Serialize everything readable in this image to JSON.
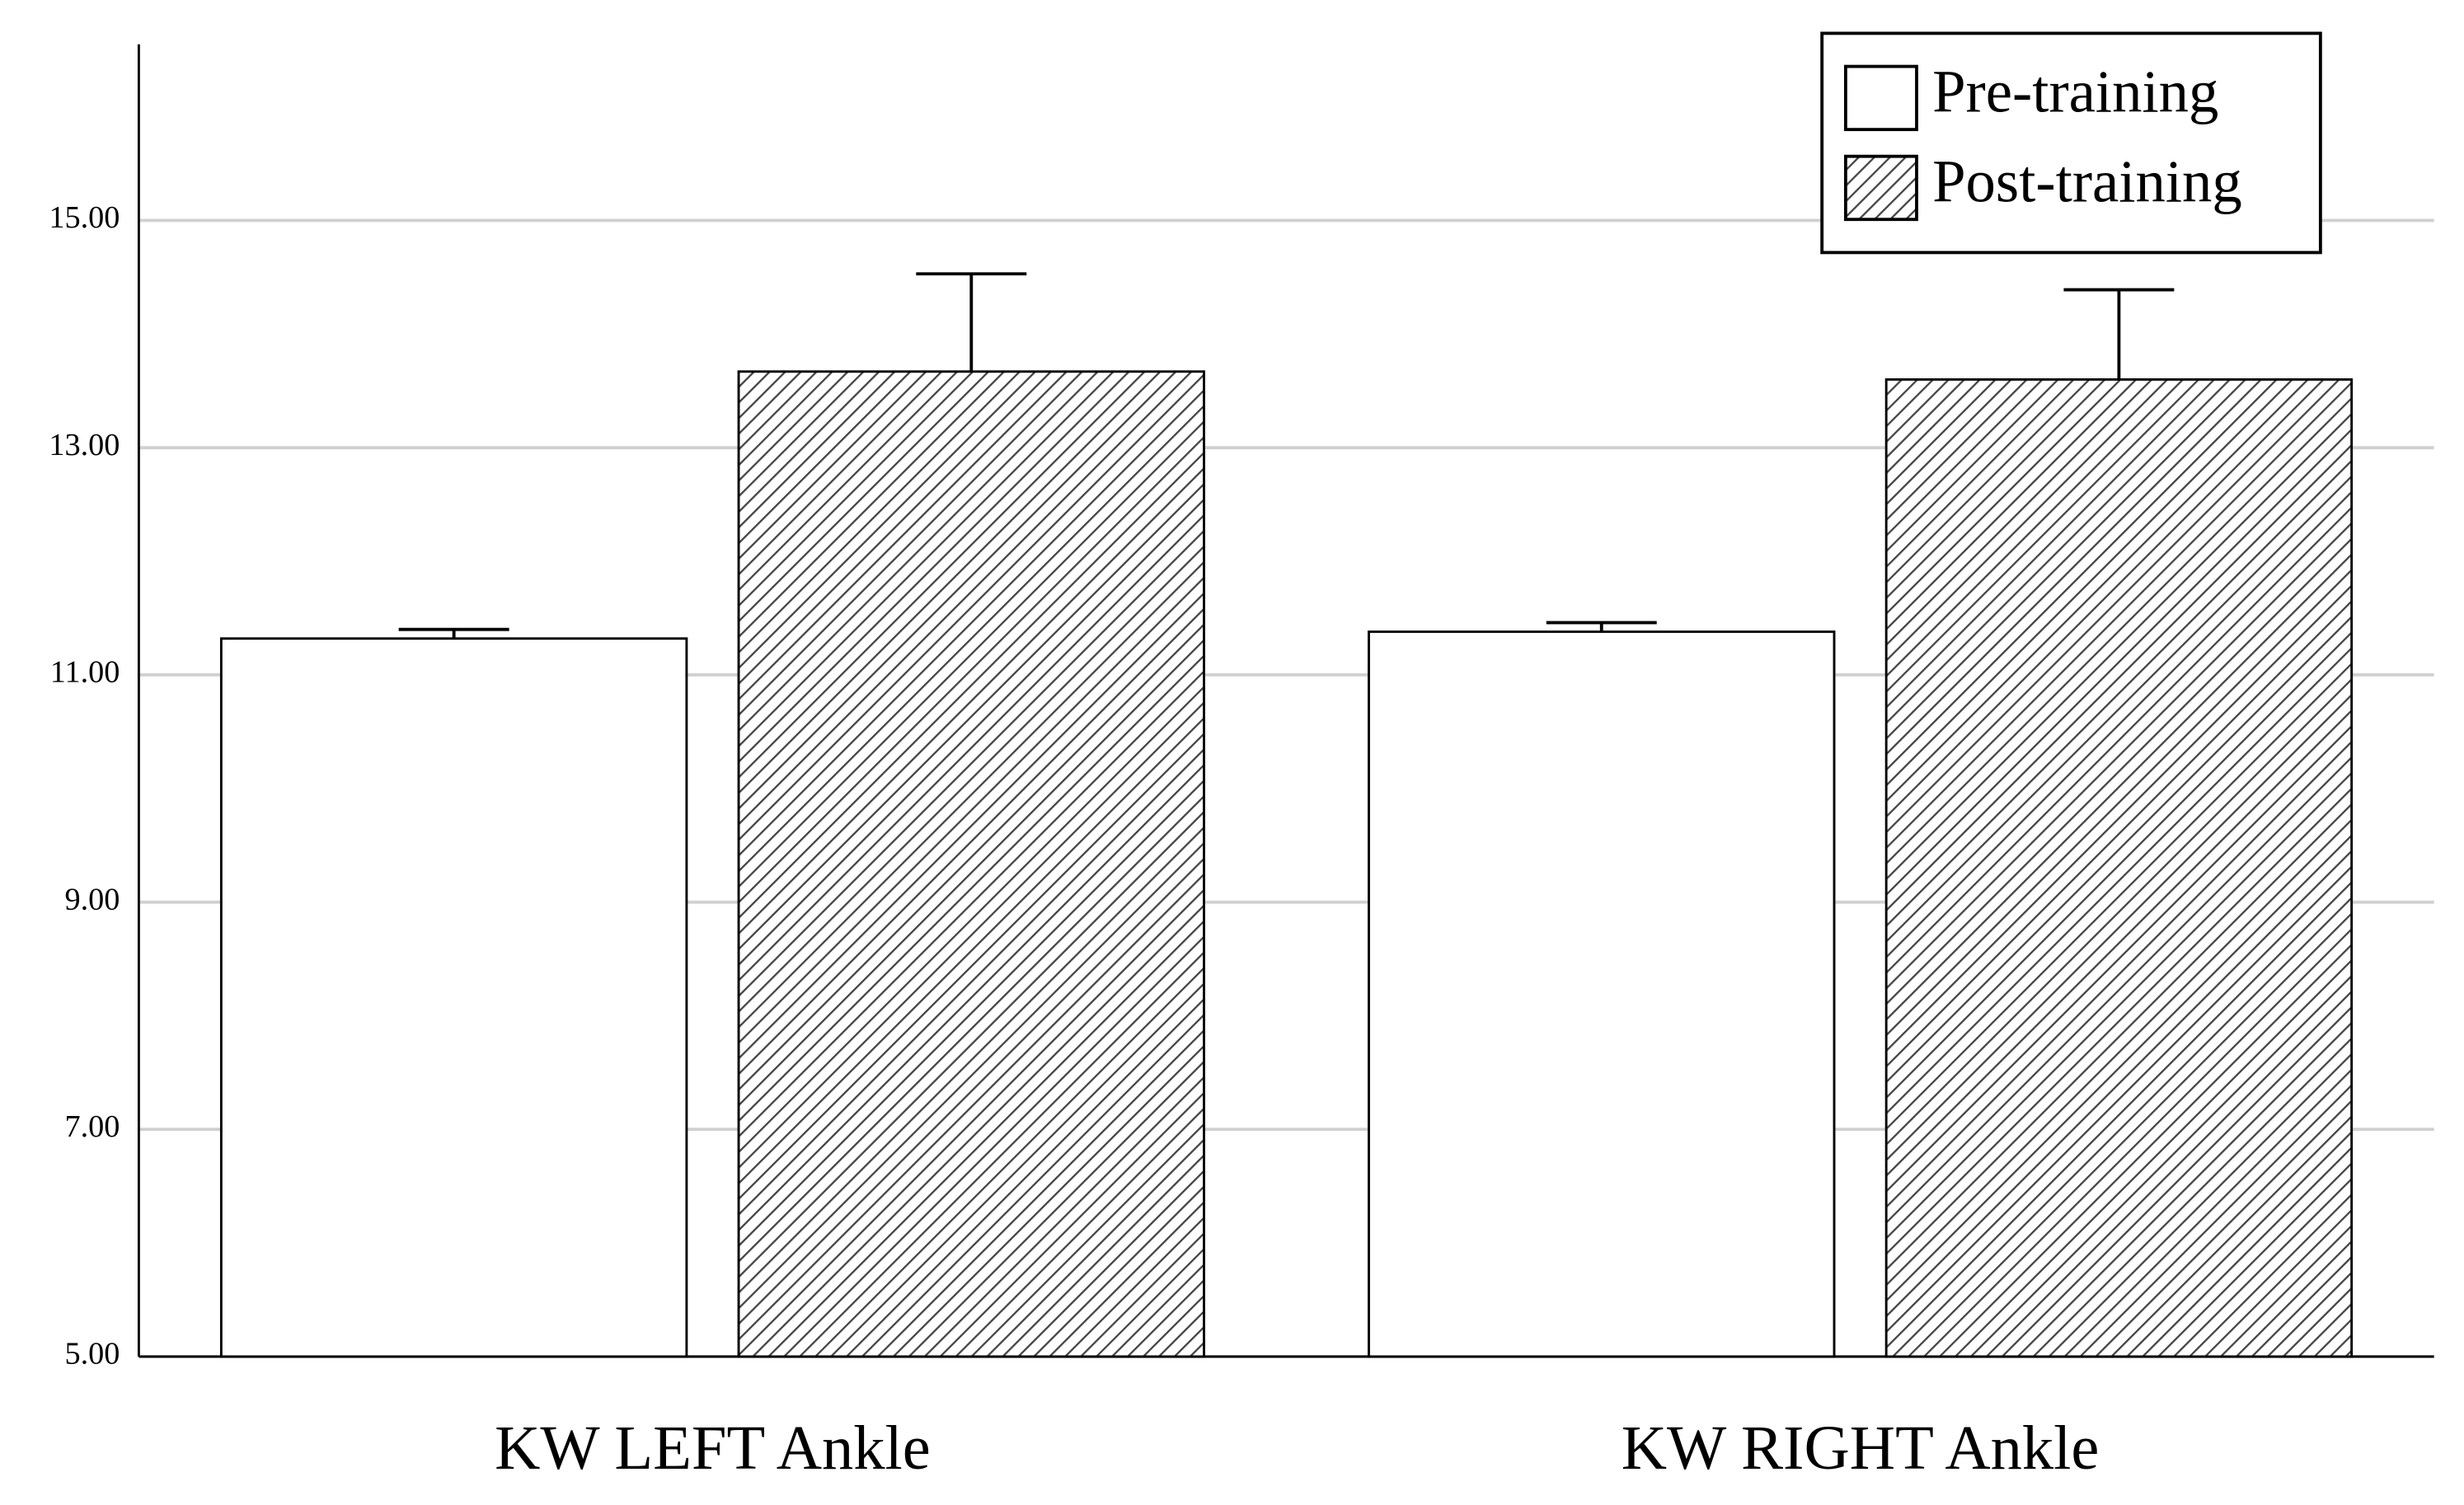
{
  "chart_data": {
    "type": "bar",
    "categories": [
      "KW LEFT Ankle",
      "KW RIGHT Ankle"
    ],
    "series": [
      {
        "name": "Pre-training",
        "color": "#ffffff",
        "values": [
          11.32,
          11.38
        ],
        "errors": [
          0.08,
          0.08
        ]
      },
      {
        "name": "Post-training",
        "color": "#555555",
        "pattern": "hatch",
        "values": [
          13.67,
          13.6
        ],
        "errors": [
          0.86,
          0.79
        ]
      }
    ],
    "ylim": [
      5,
      16.55
    ],
    "yticks": [
      {
        "value": 5,
        "label": "5.00"
      },
      {
        "value": 7,
        "label": "7.00"
      },
      {
        "value": 9,
        "label": "9.00"
      },
      {
        "value": 11,
        "label": "11.00"
      },
      {
        "value": 13,
        "label": "13.00"
      },
      {
        "value": 15,
        "label": "15.00"
      }
    ],
    "grid": true,
    "legend": "upper right"
  }
}
